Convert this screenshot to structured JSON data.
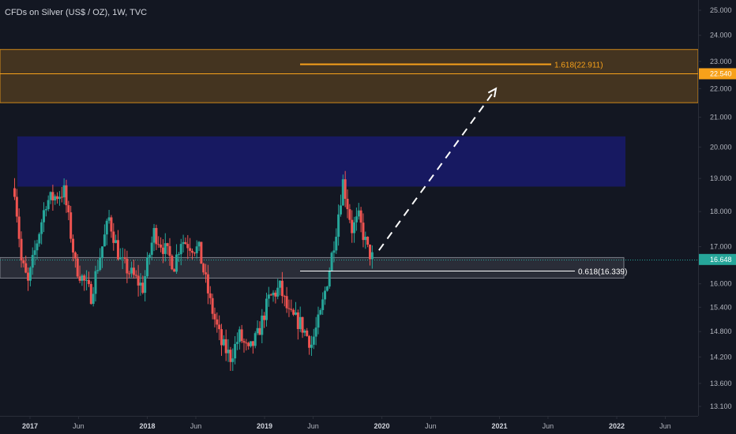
{
  "chart_data": {
    "type": "candlestick",
    "title": "CFDs on Silver (US$ / OZ), 1W, TVC",
    "y_scale": "log",
    "ylim": [
      13.0,
      25.5
    ],
    "x_range": [
      "2016-11-14",
      "2022-09-01"
    ],
    "y_ticks": [
      "25.000",
      "24.000",
      "23.000",
      "22.000",
      "21.000",
      "20.000",
      "19.000",
      "18.000",
      "17.000",
      "16.000",
      "15.400",
      "14.800",
      "14.200",
      "13.600",
      "13.100"
    ],
    "x_ticks": [
      {
        "label": "2017",
        "date": "2017-01-01",
        "bold": true
      },
      {
        "label": "Jun",
        "date": "2017-06-01",
        "bold": false
      },
      {
        "label": "2018",
        "date": "2018-01-01",
        "bold": true
      },
      {
        "label": "Jun",
        "date": "2018-06-01",
        "bold": false
      },
      {
        "label": "2019",
        "date": "2019-01-01",
        "bold": true
      },
      {
        "label": "Jun",
        "date": "2019-06-01",
        "bold": false
      },
      {
        "label": "2020",
        "date": "2020-01-01",
        "bold": true
      },
      {
        "label": "Jun",
        "date": "2020-06-01",
        "bold": false
      },
      {
        "label": "2021",
        "date": "2021-01-01",
        "bold": true
      },
      {
        "label": "Jun",
        "date": "2021-06-01",
        "bold": false
      },
      {
        "label": "2022",
        "date": "2022-01-01",
        "bold": true
      },
      {
        "label": "Jun",
        "date": "2022-06-01",
        "bold": false
      }
    ],
    "price_path": [
      [
        "2016-11-14",
        18.7
      ],
      [
        "2016-12-05",
        16.6
      ],
      [
        "2016-12-26",
        16.0
      ],
      [
        "2017-02-20",
        18.3
      ],
      [
        "2017-04-17",
        18.6
      ],
      [
        "2017-05-22",
        16.5
      ],
      [
        "2017-07-10",
        15.7
      ],
      [
        "2017-09-04",
        17.8
      ],
      [
        "2017-10-09",
        16.6
      ],
      [
        "2017-12-18",
        15.9
      ],
      [
        "2018-01-22",
        17.4
      ],
      [
        "2018-03-26",
        16.5
      ],
      [
        "2018-04-16",
        17.2
      ],
      [
        "2018-06-11",
        16.9
      ],
      [
        "2018-07-16",
        15.5
      ],
      [
        "2018-08-20",
        14.5
      ],
      [
        "2018-09-17",
        14.2
      ],
      [
        "2018-10-15",
        14.7
      ],
      [
        "2018-11-12",
        14.3
      ],
      [
        "2018-12-10",
        14.7
      ],
      [
        "2019-01-14",
        15.6
      ],
      [
        "2019-02-18",
        15.9
      ],
      [
        "2019-03-18",
        15.2
      ],
      [
        "2019-04-22",
        15.0
      ],
      [
        "2019-05-27",
        14.5
      ],
      [
        "2019-06-24",
        15.2
      ],
      [
        "2019-07-22",
        16.4
      ],
      [
        "2019-08-12",
        17.5
      ],
      [
        "2019-09-02",
        18.9
      ],
      [
        "2019-09-30",
        17.5
      ],
      [
        "2019-10-21",
        17.8
      ],
      [
        "2019-11-18",
        16.9
      ],
      [
        "2019-12-02",
        16.7
      ]
    ],
    "shaded_zones": [
      {
        "from": 21.5,
        "to": 23.45,
        "color": "#f7a11a",
        "opacity": 0.22
      },
      {
        "from": 18.75,
        "to": 20.35,
        "color": "#1a1a8c",
        "opacity": 0.6
      },
      {
        "from": 16.15,
        "to": 16.7,
        "color": "#9598a1",
        "opacity": 0.18
      }
    ],
    "fib_levels": [
      {
        "label": "1.618(22.911)",
        "value": 22.911,
        "color": "#f7a11a"
      },
      {
        "label": "0.618(16.339)",
        "value": 16.339,
        "color": "#ffffff"
      }
    ],
    "horizontal_lines": [
      {
        "value": 22.54,
        "color": "#f7a11a"
      },
      {
        "value": 16.648,
        "color": "#26a69a",
        "dashed": true
      }
    ],
    "projection": {
      "from": [
        "2019-12-23",
        16.9
      ],
      "to": [
        "2020-12-21",
        22.0
      ]
    },
    "price_labels": [
      {
        "text": "22.540",
        "value": 22.54,
        "color": "#f7a11a"
      },
      {
        "text": "16.648",
        "value": 16.648,
        "color": "#26a69a"
      }
    ],
    "colors": {
      "up": "#26a69a",
      "down": "#ef5350",
      "background": "#131722",
      "grid": "#1e222d"
    }
  }
}
